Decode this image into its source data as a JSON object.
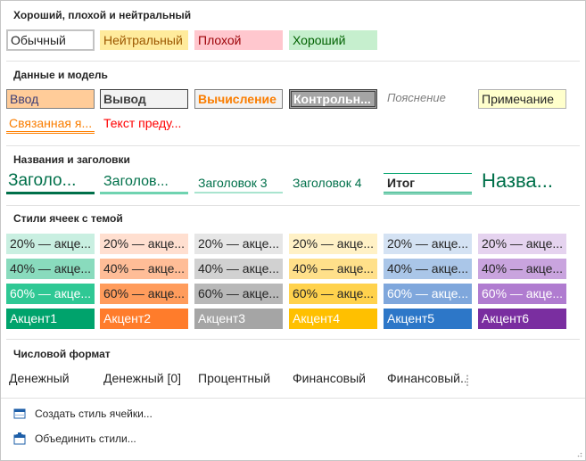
{
  "sections": {
    "good_bad": {
      "title": "Хороший, плохой и нейтральный",
      "items": [
        "Обычный",
        "Нейтральный",
        "Плохой",
        "Хороший"
      ]
    },
    "data_model": {
      "title": "Данные и модель",
      "row1": [
        "Ввод",
        "Вывод",
        "Вычисление",
        "Контрольн...",
        "Пояснение",
        "Примечание"
      ],
      "row2": [
        "Связанная я...",
        "Текст преду..."
      ]
    },
    "headings": {
      "title": "Названия и заголовки",
      "items": [
        "Заголо...",
        "Заголов...",
        "Заголовок 3",
        "Заголовок 4",
        "Итог",
        "Назва..."
      ]
    },
    "theme": {
      "title": "Стили ячеек с темой",
      "row20": [
        "20% — акце...",
        "20% — акце...",
        "20% — акце...",
        "20% — акце...",
        "20% — акце...",
        "20% — акце..."
      ],
      "row40": [
        "40% — акце...",
        "40% — акце...",
        "40% — акце...",
        "40% — акце...",
        "40% — акце...",
        "40% — акце..."
      ],
      "row60": [
        "60% — акце...",
        "60% — акце...",
        "60% — акце...",
        "60% — акце...",
        "60% — акце...",
        "60% — акце..."
      ],
      "accents": [
        "Акцент1",
        "Акцент2",
        "Акцент3",
        "Акцент4",
        "Акцент5",
        "Акцент6"
      ]
    },
    "number": {
      "title": "Числовой формат",
      "items": [
        "Денежный",
        "Денежный [0]",
        "Процентный",
        "Финансовый",
        "Финансовый..."
      ]
    }
  },
  "commands": {
    "create": "Создать стиль ячейки...",
    "merge": "Объединить стили..."
  },
  "colors": {
    "neutral_bg": "#ffeb9c",
    "neutral_fg": "#9c5700",
    "bad_bg": "#ffc7ce",
    "bad_fg": "#9c0006",
    "good_bg": "#c6efce",
    "good_fg": "#006100",
    "accents": [
      "#00a36c",
      "#ff7c2b",
      "#a5a5a5",
      "#ffc000",
      "#2d77c8",
      "#7a2ea0"
    ],
    "tint20": [
      "#c9efe1",
      "#ffdfd0",
      "#e6e6e6",
      "#fff1c6",
      "#d4e2f3",
      "#e5d3ef"
    ],
    "tint40": [
      "#89dbbd",
      "#ffbd97",
      "#d1d1d1",
      "#ffe08a",
      "#aac6e8",
      "#c9a4de"
    ],
    "tint60": [
      "#2fc894",
      "#ff9c5c",
      "#b8b8b8",
      "#ffd24d",
      "#7fa7dc",
      "#b07cd0"
    ]
  }
}
